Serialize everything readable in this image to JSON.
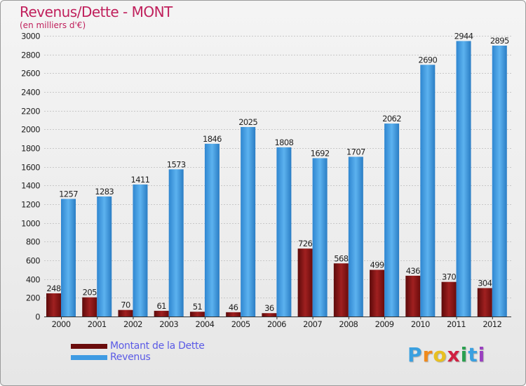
{
  "title": "Revenus/Dette - MONT",
  "subtitle": "(en milliers d'€)",
  "colors": {
    "title": "#c0205c",
    "dette": "#7a1010",
    "revenus": "#3f9be3",
    "legend_text": "#5a5ae6"
  },
  "chart_data": {
    "type": "bar",
    "title": "Revenus/Dette - MONT",
    "ylabel": "(en milliers d'€)",
    "xlabel": "",
    "ylim": [
      0,
      3000
    ],
    "ytick_step": 200,
    "grid": true,
    "categories": [
      "2000",
      "2001",
      "2002",
      "2003",
      "2004",
      "2005",
      "2006",
      "2007",
      "2008",
      "2009",
      "2010",
      "2011",
      "2012"
    ],
    "series": [
      {
        "name": "Montant de la Dette",
        "values": [
          248,
          205,
          70,
          61,
          51,
          46,
          36,
          726,
          568,
          499,
          436,
          370,
          304
        ]
      },
      {
        "name": "Revenus",
        "values": [
          1257,
          1283,
          1411,
          1573,
          1846,
          2025,
          1808,
          1692,
          1707,
          2062,
          2690,
          2944,
          2895
        ]
      }
    ]
  },
  "legend": {
    "items": [
      "Montant de la Dette",
      "Revenus"
    ]
  },
  "logo": {
    "letters": [
      "P",
      "r",
      "o",
      "x",
      "i",
      "t",
      "i"
    ]
  }
}
